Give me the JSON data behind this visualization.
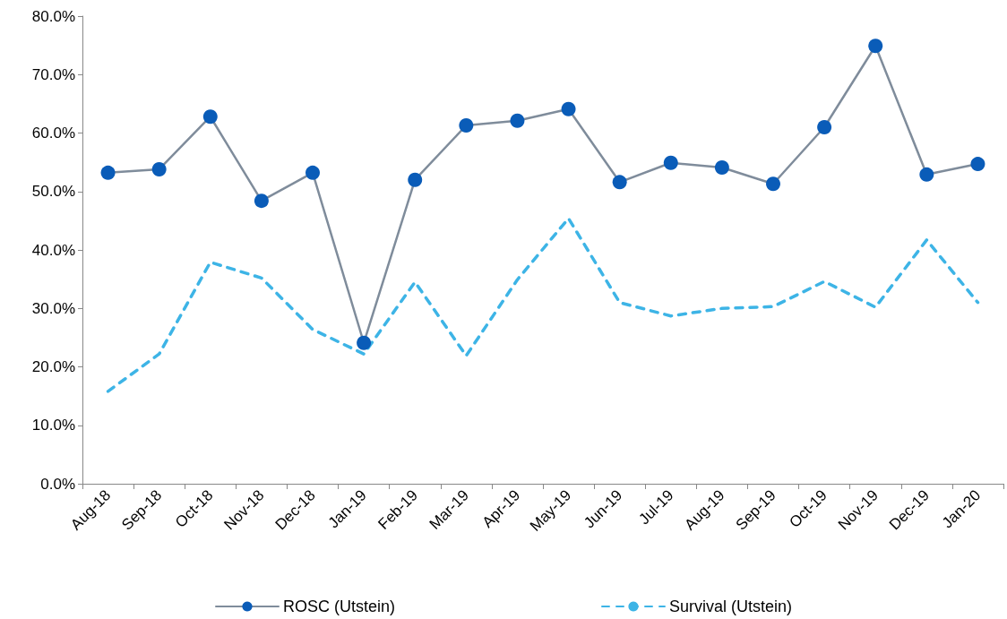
{
  "chart_data": {
    "type": "line",
    "categories": [
      "Aug-18",
      "Sep-18",
      "Oct-18",
      "Nov-18",
      "Dec-18",
      "Jan-19",
      "Feb-19",
      "Mar-19",
      "Apr-19",
      "May-19",
      "Jun-19",
      "Jul-19",
      "Aug-19",
      "Sep-19",
      "Oct-19",
      "Nov-19",
      "Dec-19",
      "Jan-20"
    ],
    "series": [
      {
        "name": "ROSC (Utstein)",
        "color": "#0a5cb8",
        "marker": "circle",
        "line_style": "solid",
        "values": [
          53.2,
          53.8,
          62.8,
          48.4,
          53.2,
          24.1,
          52.0,
          61.3,
          62.1,
          64.1,
          51.6,
          54.9,
          54.1,
          51.3,
          61.0,
          74.9,
          52.9,
          54.7
        ]
      },
      {
        "name": "Survival (Utstein)",
        "color": "#3db4e6",
        "marker": "none",
        "line_style": "dashed",
        "values": [
          15.8,
          22.2,
          37.9,
          35.2,
          26.4,
          22.2,
          34.5,
          21.9,
          34.9,
          45.4,
          31.0,
          28.7,
          30.0,
          30.3,
          34.6,
          30.2,
          41.7,
          31.0
        ]
      }
    ],
    "ylim": [
      0,
      80
    ],
    "yticks": [
      {
        "value": 0,
        "label": "0.0%"
      },
      {
        "value": 10,
        "label": "10.0%"
      },
      {
        "value": 20,
        "label": "20.0%"
      },
      {
        "value": 30,
        "label": "30.0%"
      },
      {
        "value": 40,
        "label": "40.0%"
      },
      {
        "value": 50,
        "label": "50.0%"
      },
      {
        "value": 60,
        "label": "60.0%"
      },
      {
        "value": 70,
        "label": "70.0%"
      },
      {
        "value": 80,
        "label": "80.0%"
      }
    ],
    "grid": false,
    "legend": "bottom"
  }
}
